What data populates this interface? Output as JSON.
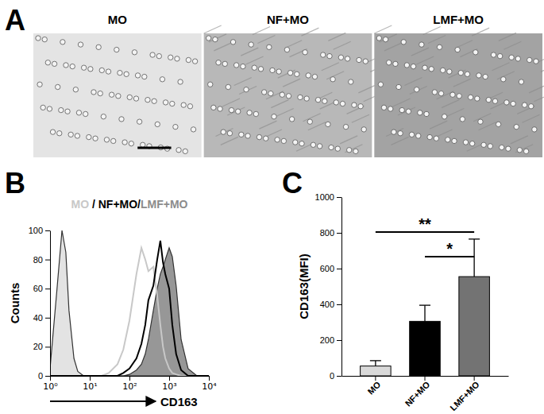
{
  "chart_data": [
    {
      "type": "image",
      "title": "A",
      "categories": [
        "MO",
        "NF+MO",
        "LMF+MO"
      ]
    },
    {
      "type": "line",
      "title": "B",
      "subtitle": "MO / NF+MO/LMF+MO",
      "xlabel": "CD163",
      "ylabel": "Counts",
      "log": "x",
      "xlim": [
        1,
        10000
      ],
      "xticks": [
        {
          "value": 1,
          "label": "10⁰"
        },
        {
          "value": 10,
          "label": "10¹"
        },
        {
          "value": 100,
          "label": "10²"
        },
        {
          "value": 1000,
          "label": "10³"
        },
        {
          "value": 10000,
          "label": "10⁴"
        }
      ],
      "ylim": [
        0,
        100
      ],
      "yticks": [
        0,
        20,
        40,
        60,
        80,
        100
      ],
      "x": [
        1,
        1.5,
        2,
        2.5,
        3,
        4,
        5,
        7,
        10,
        20,
        30,
        50,
        70,
        100,
        150,
        200,
        250,
        300,
        400,
        500,
        600,
        700,
        800,
        1000,
        1200,
        1500,
        2000,
        3000,
        5000,
        10000
      ],
      "series": [
        {
          "type": "area",
          "color": "#e0e0e0",
          "values": [
            5,
            60,
            100,
            85,
            45,
            12,
            3,
            0,
            0,
            0,
            0,
            0,
            0,
            0,
            0,
            0,
            0,
            0,
            0,
            0,
            0,
            0,
            0,
            0,
            0,
            0,
            0,
            0,
            0,
            0
          ]
        },
        {
          "name": "MO",
          "type": "line",
          "color": "#c8c8c8",
          "values": [
            0,
            0,
            0,
            0,
            0,
            0,
            0,
            0,
            0,
            0,
            2,
            8,
            18,
            38,
            70,
            88,
            80,
            72,
            75,
            55,
            35,
            20,
            12,
            5,
            2,
            1,
            0,
            0,
            0,
            0
          ]
        },
        {
          "name": "NF+MO",
          "type": "line",
          "color": "#000000",
          "values": [
            0,
            0,
            0,
            0,
            0,
            0,
            0,
            0,
            0,
            0,
            0,
            0,
            2,
            5,
            12,
            22,
            35,
            52,
            62,
            80,
            93,
            78,
            70,
            60,
            35,
            15,
            4,
            0,
            0,
            0
          ]
        },
        {
          "name": "LMF+MO",
          "type": "area",
          "color": "#8c8c8c",
          "values": [
            0,
            0,
            0,
            0,
            0,
            0,
            0,
            0,
            0,
            0,
            0,
            0,
            0,
            1,
            4,
            8,
            15,
            25,
            45,
            60,
            70,
            75,
            80,
            88,
            82,
            62,
            25,
            5,
            0,
            0
          ]
        }
      ]
    },
    {
      "type": "bar",
      "title": "C",
      "ylabel": "CD163(MFI)",
      "categories": [
        "MO",
        "NF+MO",
        "LMF+MO"
      ],
      "values": [
        55,
        305,
        555
      ],
      "errors": [
        30,
        90,
        210
      ],
      "colors": [
        "#d9d9d9",
        "#000000",
        "#737373"
      ],
      "ylim": [
        0,
        1000
      ],
      "yticks": [
        0,
        200,
        400,
        600,
        800,
        1000
      ],
      "annotations": [
        {
          "text": "**",
          "from": 0,
          "to": 2,
          "y": 804
        },
        {
          "text": "*",
          "from": 1,
          "to": 2,
          "y": 667
        }
      ]
    }
  ]
}
